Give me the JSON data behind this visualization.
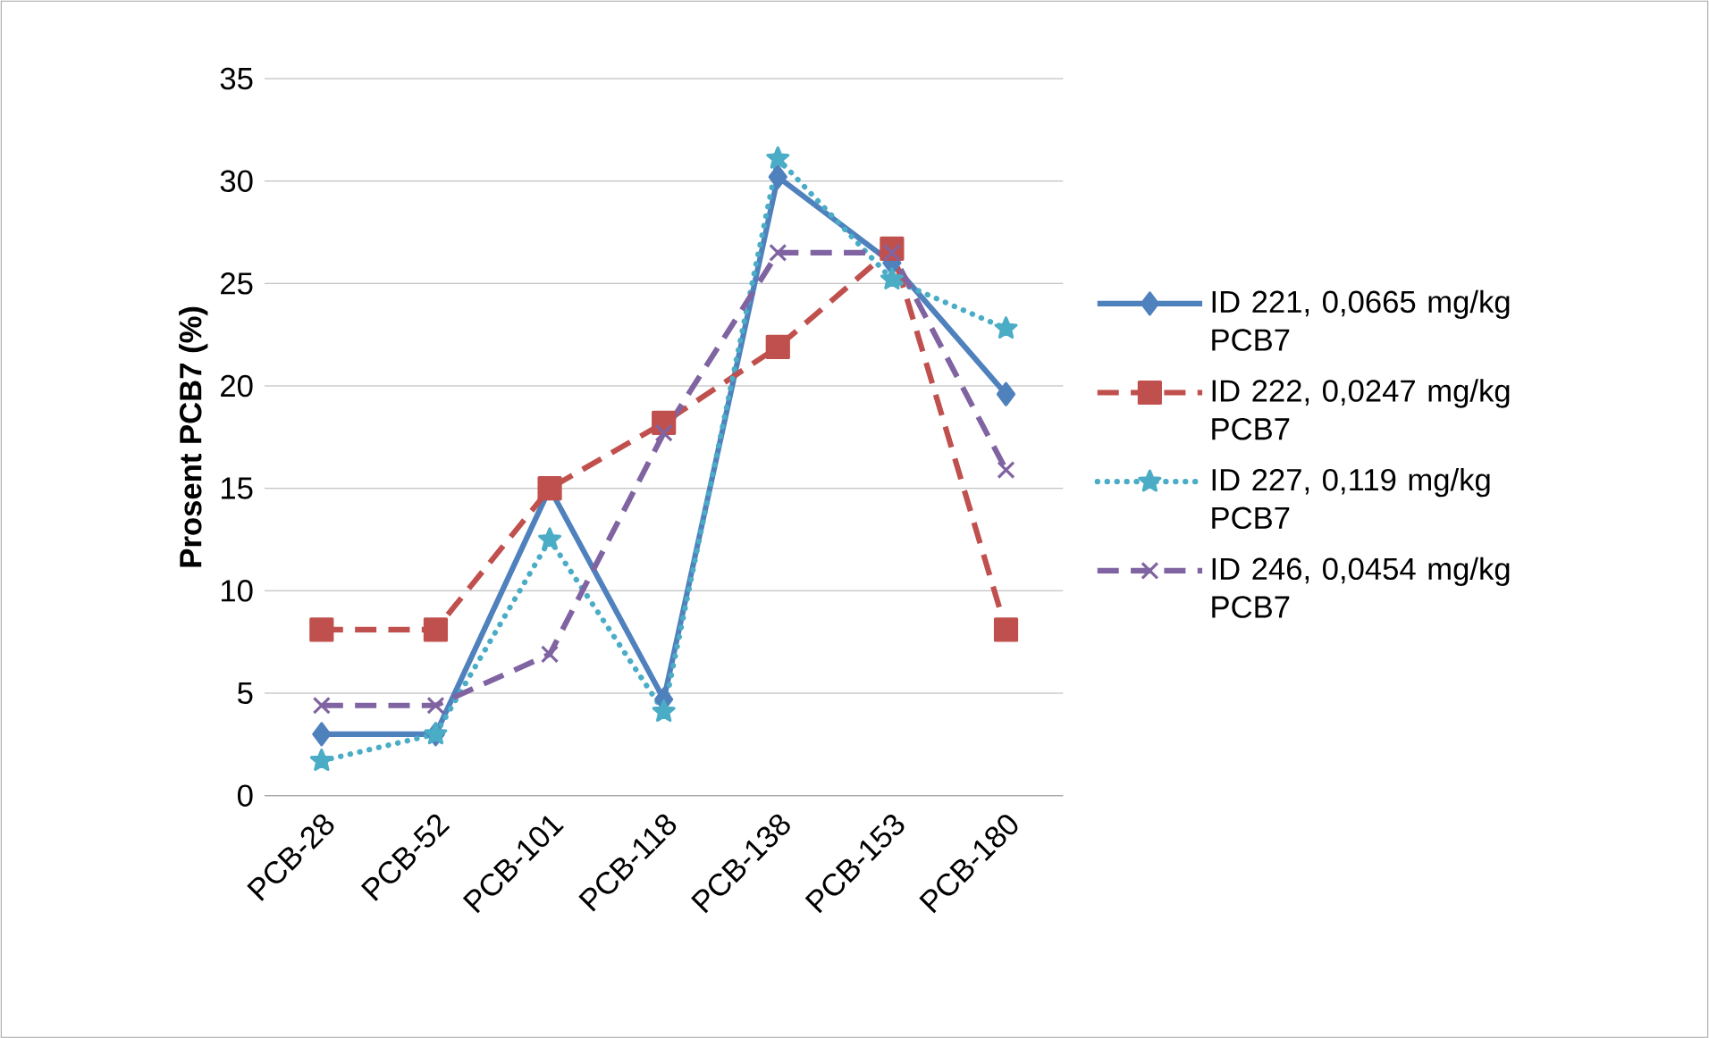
{
  "chart_data": {
    "type": "line",
    "ylabel": "Prosent PCB7 (%)",
    "categories": [
      "PCB-28",
      "PCB-52",
      "PCB-101",
      "PCB-118",
      "PCB-138",
      "PCB-153",
      "PCB-180"
    ],
    "ylim": [
      0,
      35
    ],
    "yticks": [
      0,
      5,
      10,
      15,
      20,
      25,
      30,
      35
    ],
    "grid": "y",
    "legend": "right",
    "series": [
      {
        "name": "ID 221, 0,0665 mg/kg PCB7",
        "color": "#4f81bd",
        "marker": "diamond",
        "line_style": "solid",
        "values": [
          3.0,
          3.0,
          15.0,
          4.7,
          30.2,
          26.0,
          19.6
        ]
      },
      {
        "name": "ID 222, 0,0247 mg/kg PCB7",
        "color": "#c0504d",
        "marker": "square",
        "line_style": "dashed",
        "values": [
          8.1,
          8.1,
          15.0,
          18.2,
          21.9,
          26.7,
          8.1
        ]
      },
      {
        "name": "ID 227, 0,119 mg/kg PCB7",
        "color": "#4bacc6",
        "marker": "star",
        "line_style": "dotted",
        "values": [
          1.7,
          3.0,
          12.5,
          4.1,
          31.1,
          25.2,
          22.8
        ]
      },
      {
        "name": "ID 246, 0,0454 mg/kg PCB7",
        "color": "#8064a2",
        "marker": "cross",
        "line_style": "dashed",
        "values": [
          4.4,
          4.4,
          6.9,
          17.7,
          26.5,
          26.5,
          15.9
        ]
      }
    ]
  }
}
